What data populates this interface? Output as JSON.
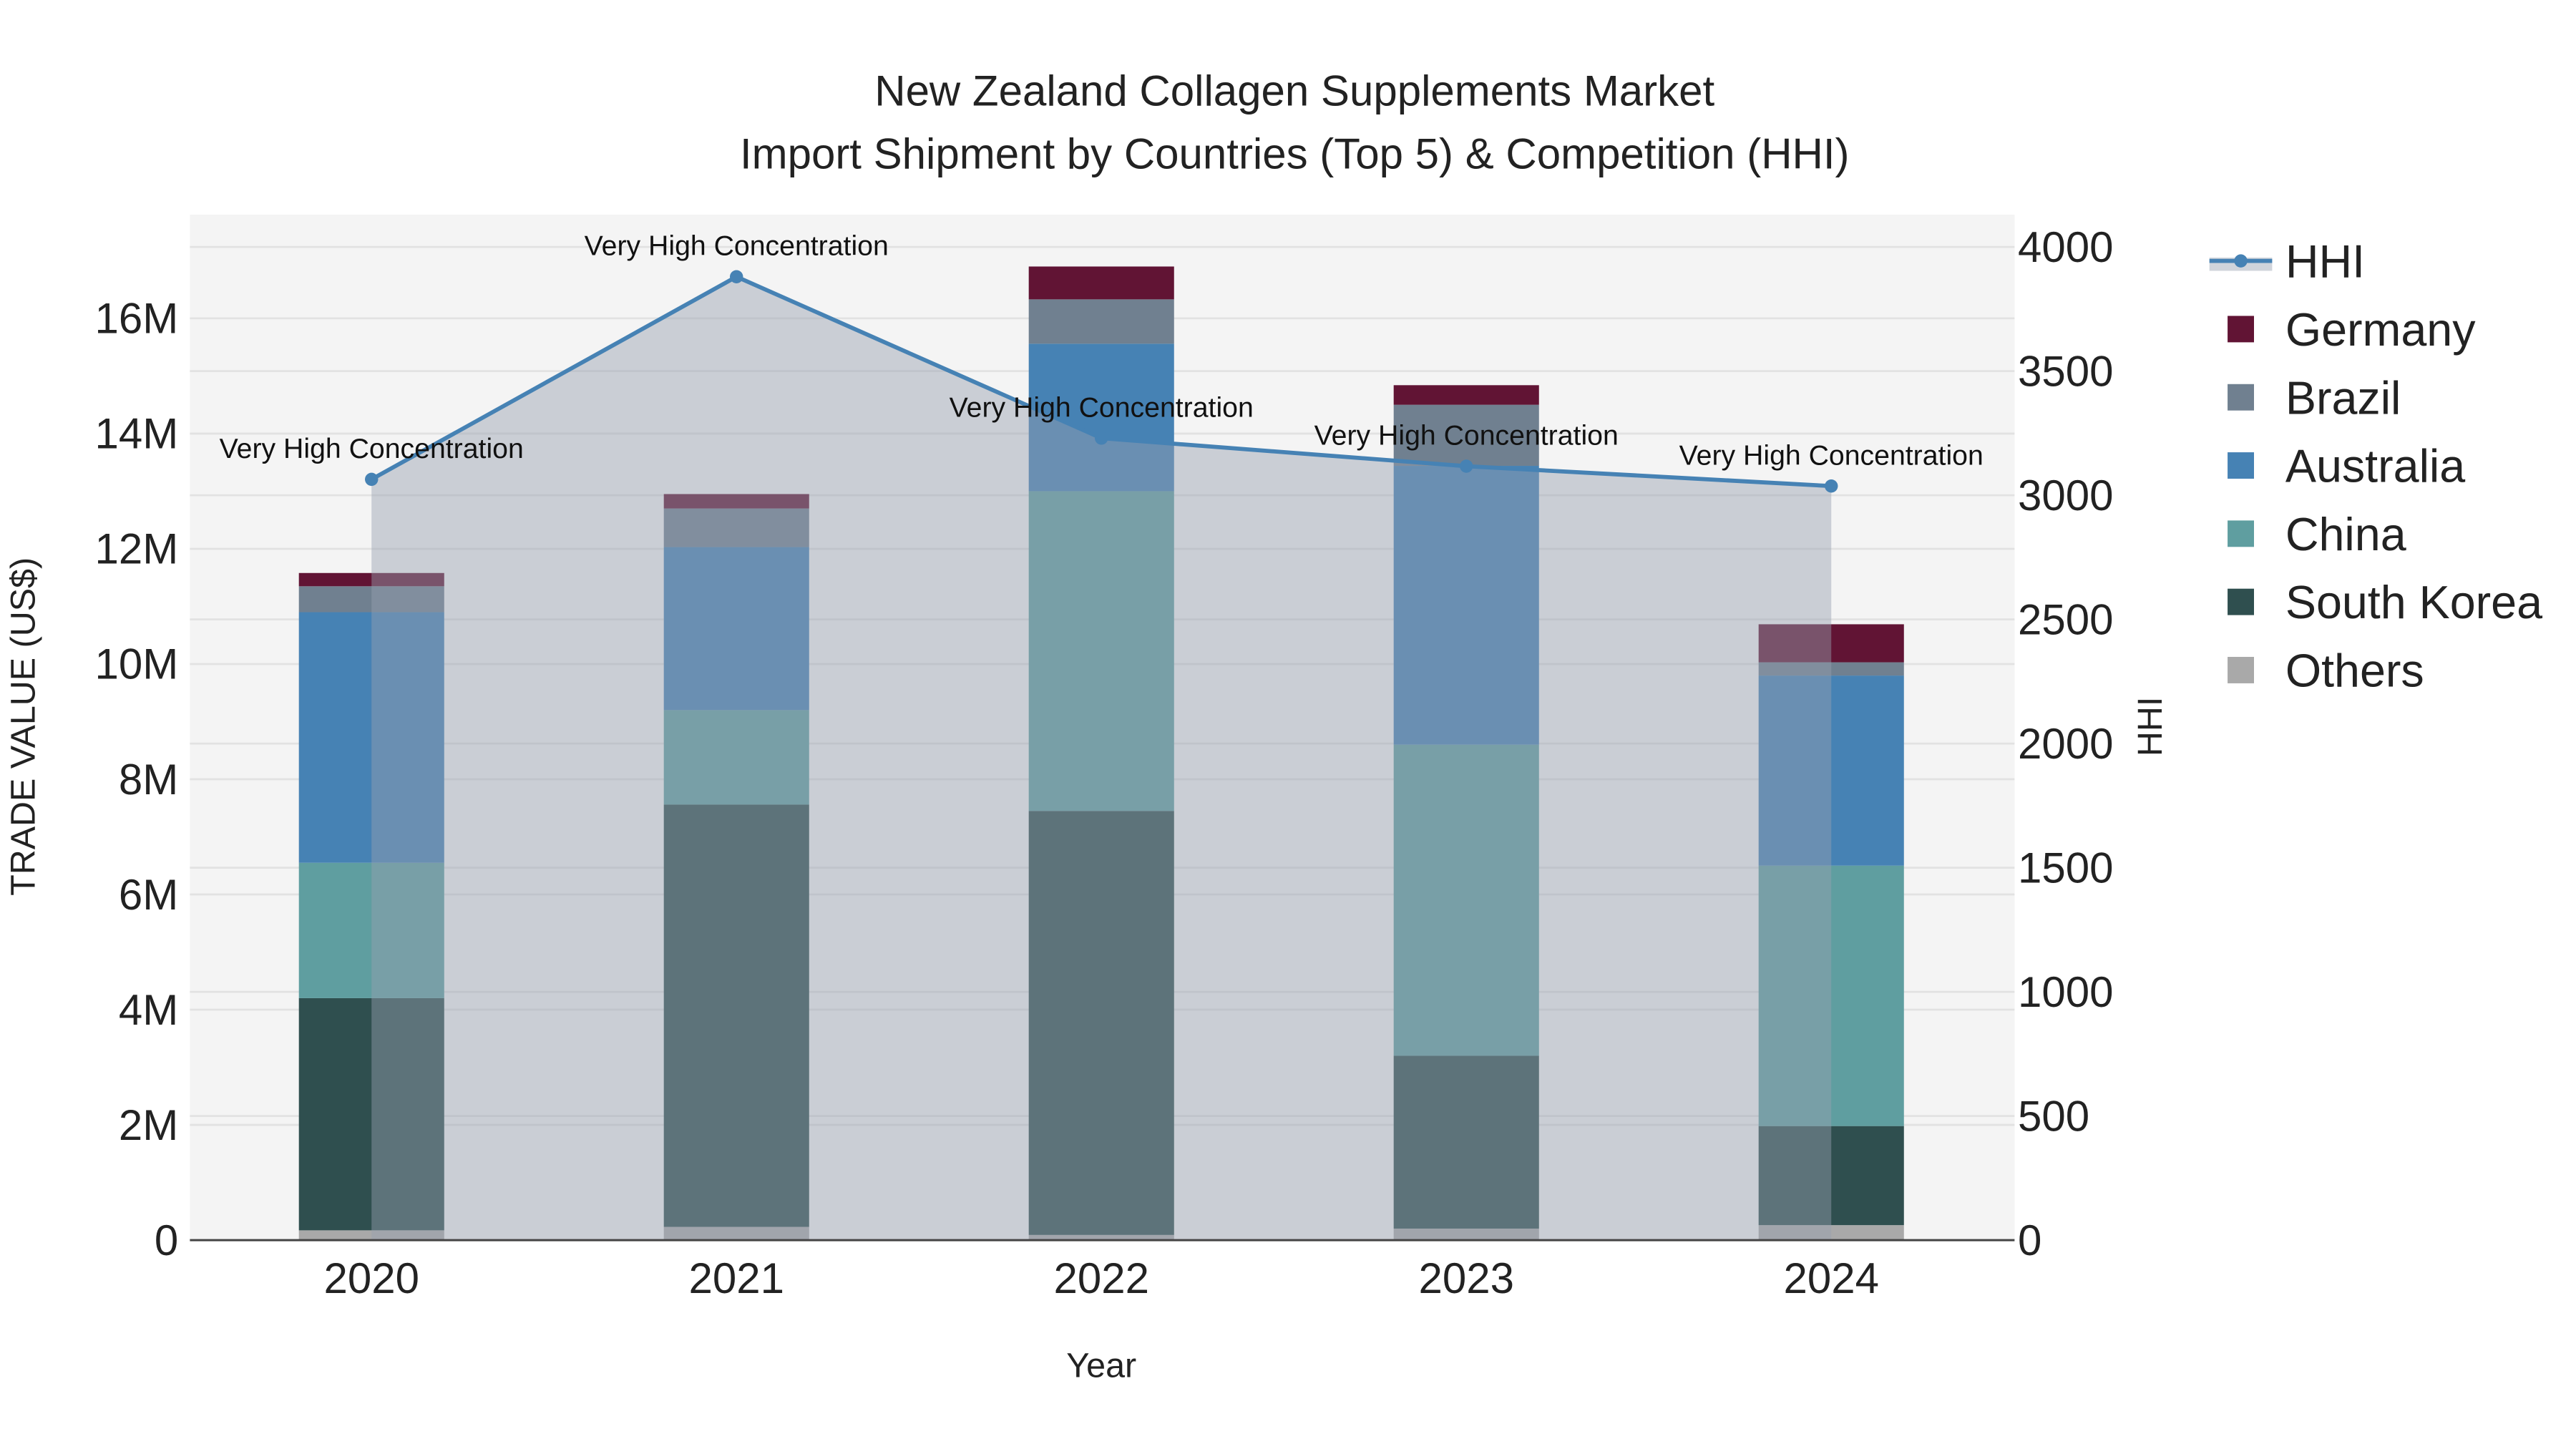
{
  "chart_data": {
    "type": "bar",
    "title_line1": "New Zealand Collagen Supplements Market",
    "title_line2": "Import Shipment by Countries (Top 5) & Competition (HHI)",
    "xlabel": "Year",
    "ylabel": "TRADE VALUE (US$)",
    "y2label": "HHI",
    "ylim": [
      0,
      17.8
    ],
    "y2lim": [
      0,
      4130
    ],
    "yticks": [
      {
        "v": 0,
        "label": "0"
      },
      {
        "v": 2,
        "label": "2M"
      },
      {
        "v": 4,
        "label": "4M"
      },
      {
        "v": 6,
        "label": "6M"
      },
      {
        "v": 8,
        "label": "8M"
      },
      {
        "v": 10,
        "label": "10M"
      },
      {
        "v": 12,
        "label": "12M"
      },
      {
        "v": 14,
        "label": "14M"
      },
      {
        "v": 16,
        "label": "16M"
      }
    ],
    "y2ticks": [
      0,
      500,
      1000,
      1500,
      2000,
      2500,
      3000,
      3500,
      4000
    ],
    "categories": [
      "2020",
      "2021",
      "2022",
      "2023",
      "2024"
    ],
    "units": "million US$",
    "series": [
      {
        "name": "Others",
        "color": "#A9A9A9",
        "values": [
          0.17,
          0.23,
          0.09,
          0.2,
          0.26
        ]
      },
      {
        "name": "South Korea",
        "color": "#2F4F4F",
        "values": [
          4.03,
          7.33,
          7.36,
          3.0,
          1.72
        ]
      },
      {
        "name": "China",
        "color": "#5F9EA0",
        "values": [
          2.35,
          1.64,
          5.55,
          5.4,
          4.52
        ]
      },
      {
        "name": "Australia",
        "color": "#4682B4",
        "values": [
          4.35,
          2.83,
          2.56,
          4.84,
          3.3
        ]
      },
      {
        "name": "Brazil",
        "color": "#708090",
        "values": [
          0.45,
          0.67,
          0.77,
          1.06,
          0.23
        ]
      },
      {
        "name": "Germany",
        "color": "#611434",
        "values": [
          0.23,
          0.25,
          0.57,
          0.34,
          0.66
        ]
      }
    ],
    "hhi": {
      "name": "HHI",
      "color": "#4682B4",
      "values": [
        3064,
        3880,
        3230,
        3117,
        3037
      ],
      "annotations": [
        "Very High Concentration",
        "Very High Concentration",
        "Very High Concentration",
        "Very High Concentration",
        "Very High Concentration"
      ]
    },
    "legend_order": [
      "HHI",
      "Germany",
      "Brazil",
      "Australia",
      "China",
      "South Korea",
      "Others"
    ],
    "legend_position": "top-right",
    "grid": true
  }
}
